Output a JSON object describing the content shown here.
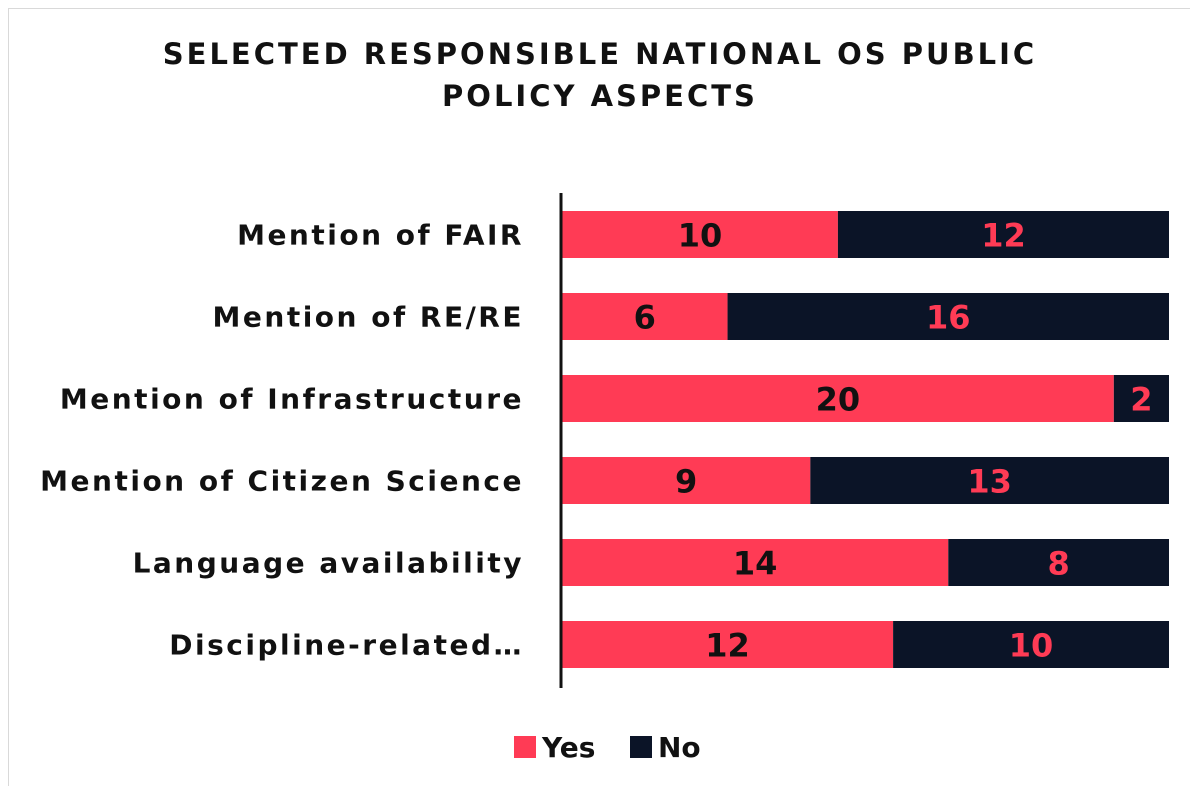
{
  "chart_data": {
    "type": "bar",
    "orientation": "horizontal",
    "stacked": true,
    "title": "SELECTED RESPONSIBLE NATIONAL OS PUBLIC POLICY ASPECTS",
    "title_lines": [
      "SELECTED RESPONSIBLE NATIONAL OS PUBLIC",
      "POLICY ASPECTS"
    ],
    "categories": [
      "Mention of FAIR",
      "Mention of RE/RE",
      "Mention of Infrastructure",
      "Mention of Citizen Science",
      "Language availability",
      "Discipline-related…"
    ],
    "series": [
      {
        "name": "Yes",
        "color": "#ff3b55",
        "label_color": "#111111",
        "values": [
          10,
          6,
          20,
          9,
          14,
          12
        ]
      },
      {
        "name": "No",
        "color": "#0b1427",
        "label_color": "#ff3b55",
        "values": [
          12,
          16,
          2,
          13,
          8,
          10
        ]
      }
    ],
    "xlim": [
      0,
      22
    ],
    "grid": false,
    "legend": "bottom"
  }
}
